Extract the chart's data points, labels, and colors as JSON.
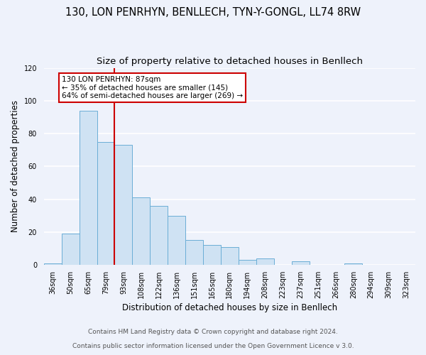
{
  "title": "130, LON PENRHYN, BENLLECH, TYN-Y-GONGL, LL74 8RW",
  "subtitle": "Size of property relative to detached houses in Benllech",
  "xlabel": "Distribution of detached houses by size in Benllech",
  "ylabel": "Number of detached properties",
  "bar_labels": [
    "36sqm",
    "50sqm",
    "65sqm",
    "79sqm",
    "93sqm",
    "108sqm",
    "122sqm",
    "136sqm",
    "151sqm",
    "165sqm",
    "180sqm",
    "194sqm",
    "208sqm",
    "223sqm",
    "237sqm",
    "251sqm",
    "266sqm",
    "280sqm",
    "294sqm",
    "309sqm",
    "323sqm"
  ],
  "bar_values": [
    1,
    19,
    94,
    75,
    73,
    41,
    36,
    30,
    15,
    12,
    11,
    3,
    4,
    0,
    2,
    0,
    0,
    1,
    0,
    0,
    0
  ],
  "bar_color": "#cfe2f3",
  "bar_edge_color": "#6baed6",
  "vline_x_index": 3.5,
  "vline_color": "#cc0000",
  "annotation_title": "130 LON PENRHYN: 87sqm",
  "annotation_line1": "← 35% of detached houses are smaller (145)",
  "annotation_line2": "64% of semi-detached houses are larger (269) →",
  "annotation_box_color": "#ffffff",
  "annotation_box_edge": "#cc0000",
  "ylim": [
    0,
    120
  ],
  "yticks": [
    0,
    20,
    40,
    60,
    80,
    100,
    120
  ],
  "footnote1": "Contains HM Land Registry data © Crown copyright and database right 2024.",
  "footnote2": "Contains public sector information licensed under the Open Government Licence v 3.0.",
  "bg_color": "#eef2fb",
  "plot_bg_color": "#eef2fb",
  "grid_color": "#ffffff",
  "title_fontsize": 10.5,
  "subtitle_fontsize": 9.5,
  "label_fontsize": 8.5,
  "tick_fontsize": 7,
  "footnote_fontsize": 6.5,
  "annotation_fontsize": 7.5
}
